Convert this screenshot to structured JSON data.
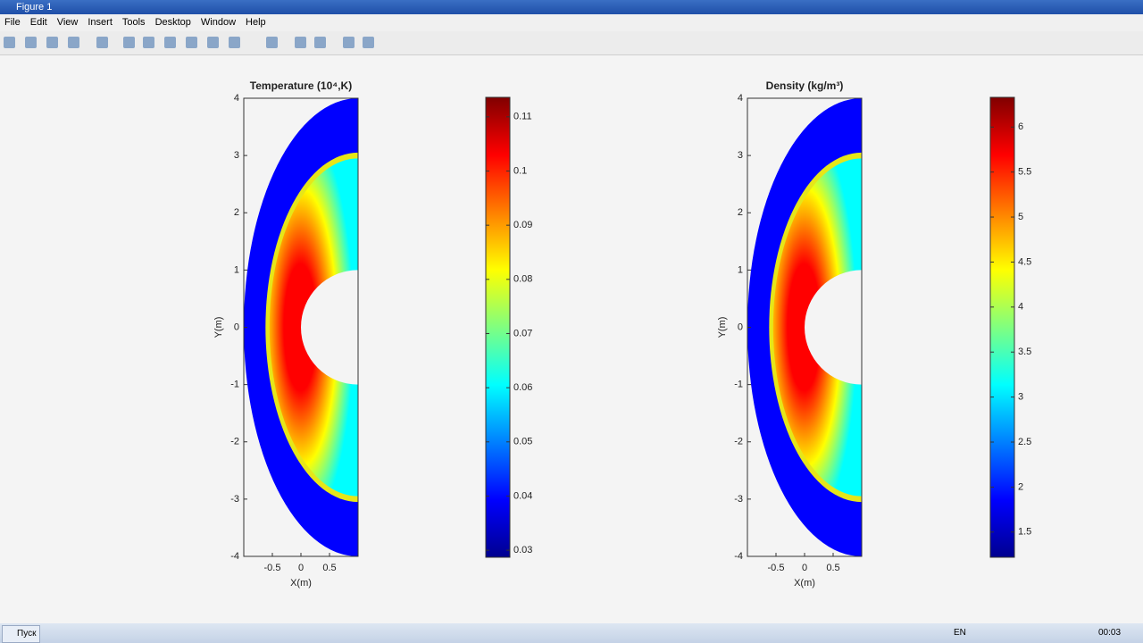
{
  "window": {
    "title": "Figure 1",
    "menu": [
      "File",
      "Edit",
      "View",
      "Insert",
      "Tools",
      "Desktop",
      "Window",
      "Help"
    ]
  },
  "chart_data": [
    {
      "type": "heatmap",
      "title": "Temperature (10⁴,K)",
      "xlabel": "X(m)",
      "ylabel": "Y(m)",
      "xlim": [
        -1,
        1
      ],
      "ylim": [
        -4,
        4
      ],
      "xticks": [
        -0.5,
        0,
        0.5
      ],
      "yticks": [
        -4,
        -3,
        -2,
        -1,
        0,
        1,
        2,
        3,
        4
      ],
      "colormap": "jet",
      "clim": [
        0.0287,
        0.1136
      ],
      "cticks": [
        0.03,
        0.04,
        0.05,
        0.06,
        0.07,
        0.08,
        0.09,
        0.1,
        0.11
      ]
    },
    {
      "type": "heatmap",
      "title": "Density (kg/m³)",
      "xlabel": "X(m)",
      "ylabel": "Y(m)",
      "xlim": [
        -1,
        1
      ],
      "ylim": [
        -4,
        4
      ],
      "xticks": [
        -0.5,
        0,
        0.5
      ],
      "yticks": [
        -4,
        -3,
        -2,
        -1,
        0,
        1,
        2,
        3,
        4
      ],
      "colormap": "jet",
      "clim": [
        1.22,
        6.33
      ],
      "cticks": [
        1.5,
        2,
        2.5,
        3,
        3.5,
        4,
        4.5,
        5,
        5.5,
        6
      ]
    }
  ],
  "taskbar": {
    "start": "Пуск",
    "language": "EN",
    "clock": "00:03"
  }
}
